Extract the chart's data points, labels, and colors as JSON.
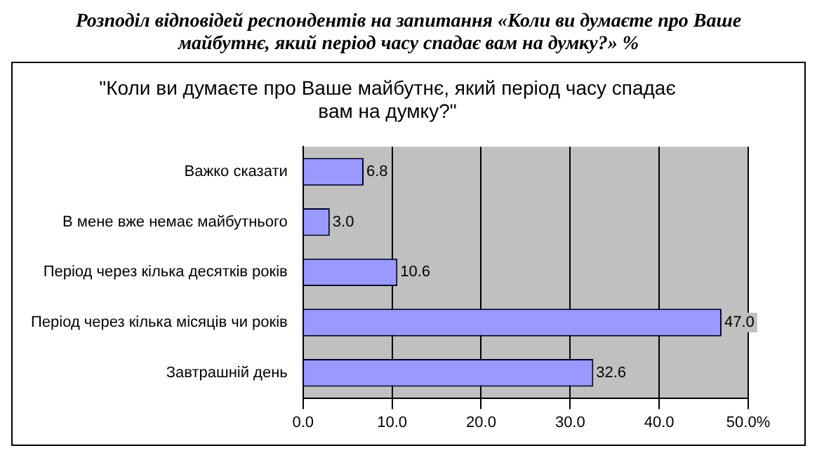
{
  "chart_data": {
    "type": "bar",
    "title": "Розподіл відповідей респондентів на запитання «Коли ви думаєте про Ваше майбутнє, який період часу спадає вам на думку?» %",
    "subtitle": "\"Коли ви думаєте про Ваше майбутнє, який період часу спадає вам на думку?\"",
    "orientation": "horizontal",
    "categories": [
      "Важко сказати",
      "В мене вже немає майбутнього",
      "Період через кілька десятків років",
      "Період через кілька місяців чи років",
      "Завтрашній день"
    ],
    "values": [
      6.8,
      3.0,
      10.6,
      47.0,
      32.6
    ],
    "value_labels": [
      "6.8",
      "3.0",
      "10.6",
      "47.0",
      "32.6"
    ],
    "color": "#9999ff",
    "xlim": [
      0,
      50
    ],
    "xticks": [
      {
        "value": 0,
        "label": "0.0"
      },
      {
        "value": 10,
        "label": "10.0"
      },
      {
        "value": 20,
        "label": "20.0"
      },
      {
        "value": 30,
        "label": "30.0"
      },
      {
        "value": 40,
        "label": "40.0"
      },
      {
        "value": 50,
        "label": "50.0%"
      }
    ],
    "grid": "x",
    "legend": false
  }
}
